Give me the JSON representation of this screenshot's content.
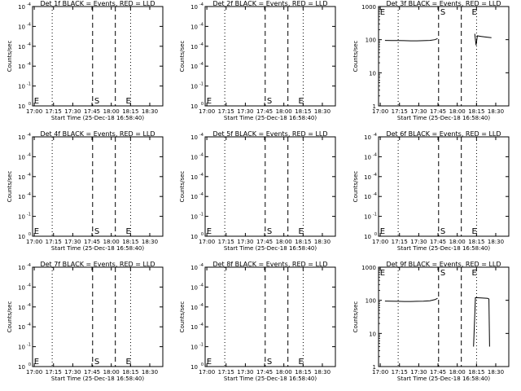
{
  "chart_data": {
    "type": "grid-of-line-charts",
    "rows": 3,
    "cols": 3,
    "ylabel": "Counts/sec",
    "xlabel": "Start Time (25-Dec-18 16:58:40)",
    "x_tick_labels": [
      "17:00",
      "17:15",
      "17:30",
      "17:45",
      "18:00",
      "18:15",
      "18:30"
    ],
    "x_tick_minutes": [
      1.333,
      16.333,
      31.333,
      46.333,
      61.333,
      76.333,
      91.333
    ],
    "x_range_minutes": [
      0,
      101.5
    ],
    "dotted_lines_minutes": [
      15.3,
      76.4
    ],
    "dashed_lines_minutes": [
      46.8,
      64.5
    ],
    "markers": [
      {
        "text": "E",
        "minute": 0.5
      },
      {
        "text": "S",
        "minute": 47.5
      },
      {
        "text": "E",
        "minute": 72.0
      }
    ],
    "panels": [
      {
        "title": "Det 1f BLACK = Events, RED = LLD",
        "scale": "neg",
        "y_tick_labels": [
          "10",
          "10",
          "10",
          "10",
          "10",
          "10"
        ],
        "y_tick_exps": [
          "-4",
          "-4",
          "-4",
          "-4",
          "-1",
          "0"
        ],
        "y_tick_values": [
          -4,
          -3,
          -2,
          -1,
          0,
          1
        ],
        "series": []
      },
      {
        "title": "Det 2f BLACK = Events, RED = LLD",
        "scale": "neg",
        "y_tick_labels": [
          "10",
          "10",
          "10",
          "10",
          "10",
          "10"
        ],
        "y_tick_exps": [
          "-4",
          "-4",
          "-4",
          "-4",
          "-1",
          "0"
        ],
        "y_tick_values": [
          -4,
          -3,
          -2,
          -1,
          0,
          1
        ],
        "series": []
      },
      {
        "title": "Det 3f BLACK = Events, RED = LLD",
        "scale": "log",
        "ylim": [
          1,
          1000
        ],
        "y_tick_labels": [
          "1000",
          "100",
          "10",
          "1"
        ],
        "y_tick_exps": [
          "",
          "",
          "",
          ""
        ],
        "y_tick_values": [
          1000,
          100,
          10,
          1
        ],
        "series": [
          {
            "segment": [
              [
                5,
                95
              ],
              [
                10,
                94
              ],
              [
                15,
                94
              ],
              [
                20,
                93
              ],
              [
                25,
                92
              ],
              [
                30,
                92
              ],
              [
                35,
                93
              ],
              [
                40,
                95
              ],
              [
                44,
                100
              ],
              [
                46,
                108
              ]
            ]
          },
          {
            "segment": [
              [
                75,
                150
              ],
              [
                76,
                68
              ],
              [
                77,
                130
              ],
              [
                80,
                125
              ],
              [
                85,
                118
              ],
              [
                88,
                115
              ]
            ]
          }
        ]
      },
      {
        "title": "Det 4f BLACK = Events, RED = LLD",
        "scale": "neg",
        "y_tick_labels": [
          "10",
          "10",
          "10",
          "10",
          "10",
          "10"
        ],
        "y_tick_exps": [
          "-4",
          "-4",
          "-4",
          "-4",
          "-1",
          "0"
        ],
        "y_tick_values": [
          -4,
          -3,
          -2,
          -1,
          0,
          1
        ],
        "series": []
      },
      {
        "title": "Det 5f BLACK = Events, RED = LLD",
        "scale": "neg",
        "y_tick_labels": [
          "10",
          "10",
          "10",
          "10",
          "10",
          "10"
        ],
        "y_tick_exps": [
          "-4",
          "-4",
          "-4",
          "-4",
          "-1",
          "0"
        ],
        "y_tick_values": [
          -4,
          -3,
          -2,
          -1,
          0,
          1
        ],
        "series": []
      },
      {
        "title": "Det 6f BLACK = Events, RED = LLD",
        "scale": "neg",
        "y_tick_labels": [
          "10",
          "10",
          "10",
          "10",
          "10",
          "10"
        ],
        "y_tick_exps": [
          "-4",
          "-4",
          "-4",
          "-4",
          "-1",
          "0"
        ],
        "y_tick_values": [
          -4,
          -3,
          -2,
          -1,
          0,
          1
        ],
        "series": []
      },
      {
        "title": "Det 7f BLACK = Events, RED = LLD",
        "scale": "neg",
        "y_tick_labels": [
          "10",
          "10",
          "10",
          "10",
          "10",
          "10"
        ],
        "y_tick_exps": [
          "-4",
          "-4",
          "-4",
          "-4",
          "-1",
          "0"
        ],
        "y_tick_values": [
          -4,
          -3,
          -2,
          -1,
          0,
          1
        ],
        "series": []
      },
      {
        "title": "Det 8f BLACK = Events, RED = LLD",
        "scale": "neg",
        "y_tick_labels": [
          "10",
          "10",
          "10",
          "10",
          "10",
          "10"
        ],
        "y_tick_exps": [
          "-4",
          "-4",
          "-4",
          "-4",
          "-1",
          "0"
        ],
        "y_tick_values": [
          -4,
          -3,
          -2,
          -1,
          0,
          1
        ],
        "series": []
      },
      {
        "title": "Det 9f BLACK = Events, RED = LLD",
        "scale": "log",
        "ylim": [
          1,
          1000
        ],
        "y_tick_labels": [
          "1000",
          "100",
          "10",
          "1"
        ],
        "y_tick_exps": [
          "",
          "",
          "",
          ""
        ],
        "y_tick_values": [
          1000,
          100,
          10,
          1
        ],
        "series": [
          {
            "segment": [
              [
                5,
                95
              ],
              [
                10,
                94
              ],
              [
                15,
                93
              ],
              [
                20,
                92
              ],
              [
                25,
                92
              ],
              [
                30,
                93
              ],
              [
                35,
                94
              ],
              [
                40,
                97
              ],
              [
                44,
                105
              ],
              [
                46,
                115
              ]
            ]
          },
          {
            "segment": [
              [
                74,
                4
              ],
              [
                75,
                35
              ],
              [
                75.5,
                120
              ],
              [
                80,
                118
              ],
              [
                85,
                115
              ],
              [
                86,
                110
              ],
              [
                86.5,
                4
              ]
            ]
          }
        ]
      }
    ]
  }
}
